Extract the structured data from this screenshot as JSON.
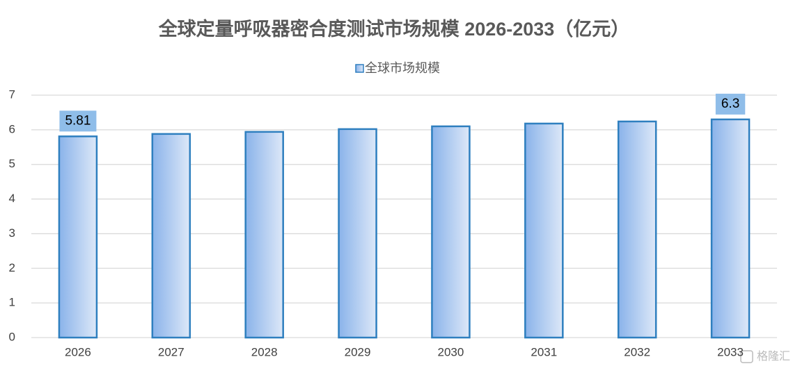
{
  "chart_data": {
    "type": "bar",
    "title": "全球定量呼吸器密合度测试市场规模 2026-2033（亿元）",
    "categories": [
      "2026",
      "2027",
      "2028",
      "2029",
      "2030",
      "2031",
      "2032",
      "2033"
    ],
    "series": [
      {
        "name": "全球市场规模",
        "color": "#2e7fbf",
        "values": [
          5.81,
          5.88,
          5.94,
          6.02,
          6.1,
          6.18,
          6.24,
          6.3
        ],
        "value_labels": [
          "5.81",
          null,
          null,
          null,
          null,
          null,
          null,
          "6.3"
        ]
      }
    ],
    "ylim": [
      0,
      7
    ],
    "yticks": [
      0,
      1,
      2,
      3,
      4,
      5,
      6,
      7
    ],
    "grid": true,
    "legend": "top",
    "watermark": "格隆汇"
  }
}
